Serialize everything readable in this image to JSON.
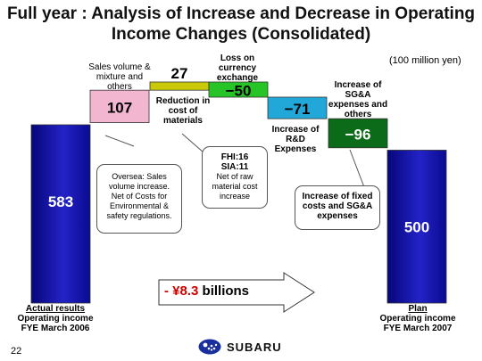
{
  "page_title": "Full year : Analysis of Increase and Decrease in Operating Income Changes (Consolidated)",
  "unit_label": "(100 million yen)",
  "chart_data": {
    "type": "waterfall",
    "title": "Full year : Analysis of Increase and Decrease in Operating Income Changes (Consolidated)",
    "unit": "(100 million yen)",
    "bars": [
      {
        "key": "actual",
        "label": "583",
        "value": 583,
        "start": 0,
        "end": 583,
        "color": "#1a1aa8"
      },
      {
        "key": "sales",
        "label": "107",
        "value": 107,
        "start": 583,
        "end": 690,
        "color": "#f3b6d0"
      },
      {
        "key": "materials",
        "label": "27",
        "value": 27,
        "start": 690,
        "end": 717,
        "color": "#c9c90a"
      },
      {
        "key": "fx",
        "label": "−50",
        "value": -50,
        "start": 717,
        "end": 667,
        "color": "#27c427"
      },
      {
        "key": "rd",
        "label": "−71",
        "value": -71,
        "start": 667,
        "end": 596,
        "color": "#22a8d8"
      },
      {
        "key": "sga",
        "label": "−96",
        "value": -96,
        "start": 596,
        "end": 500,
        "color": "#0c6b18"
      },
      {
        "key": "plan",
        "label": "500",
        "value": 500,
        "start": 0,
        "end": 500,
        "color": "#1a1aa8"
      }
    ]
  },
  "labels": {
    "sales_volume": "Sales volume & mixture and others",
    "reduction": "Reduction in cost of materials",
    "currency": "Loss on currency exchange",
    "rd": "Increase of R&D Expenses",
    "sga": "Increase of SG&A expenses and others"
  },
  "callouts": {
    "overseas": "Oversea: Sales volume increase. Net of Costs for Environmental & safety regulations.",
    "fhi": "FHI:16",
    "sia": "SIA:11",
    "net_raw": "Net of raw material cost increase",
    "fixed": "Increase of fixed costs and SG&A expenses"
  },
  "arrow": {
    "neg": "- ¥8.3",
    "rest": " billions"
  },
  "bottom": {
    "left_title": "Actual results",
    "left_line1": "Operating income",
    "left_line2": "FYE March 2006",
    "right_title": "Plan",
    "right_line1": "Operating income",
    "right_line2": "FYE March 2007"
  },
  "page_number": "22",
  "logo_text": "SUBARU"
}
